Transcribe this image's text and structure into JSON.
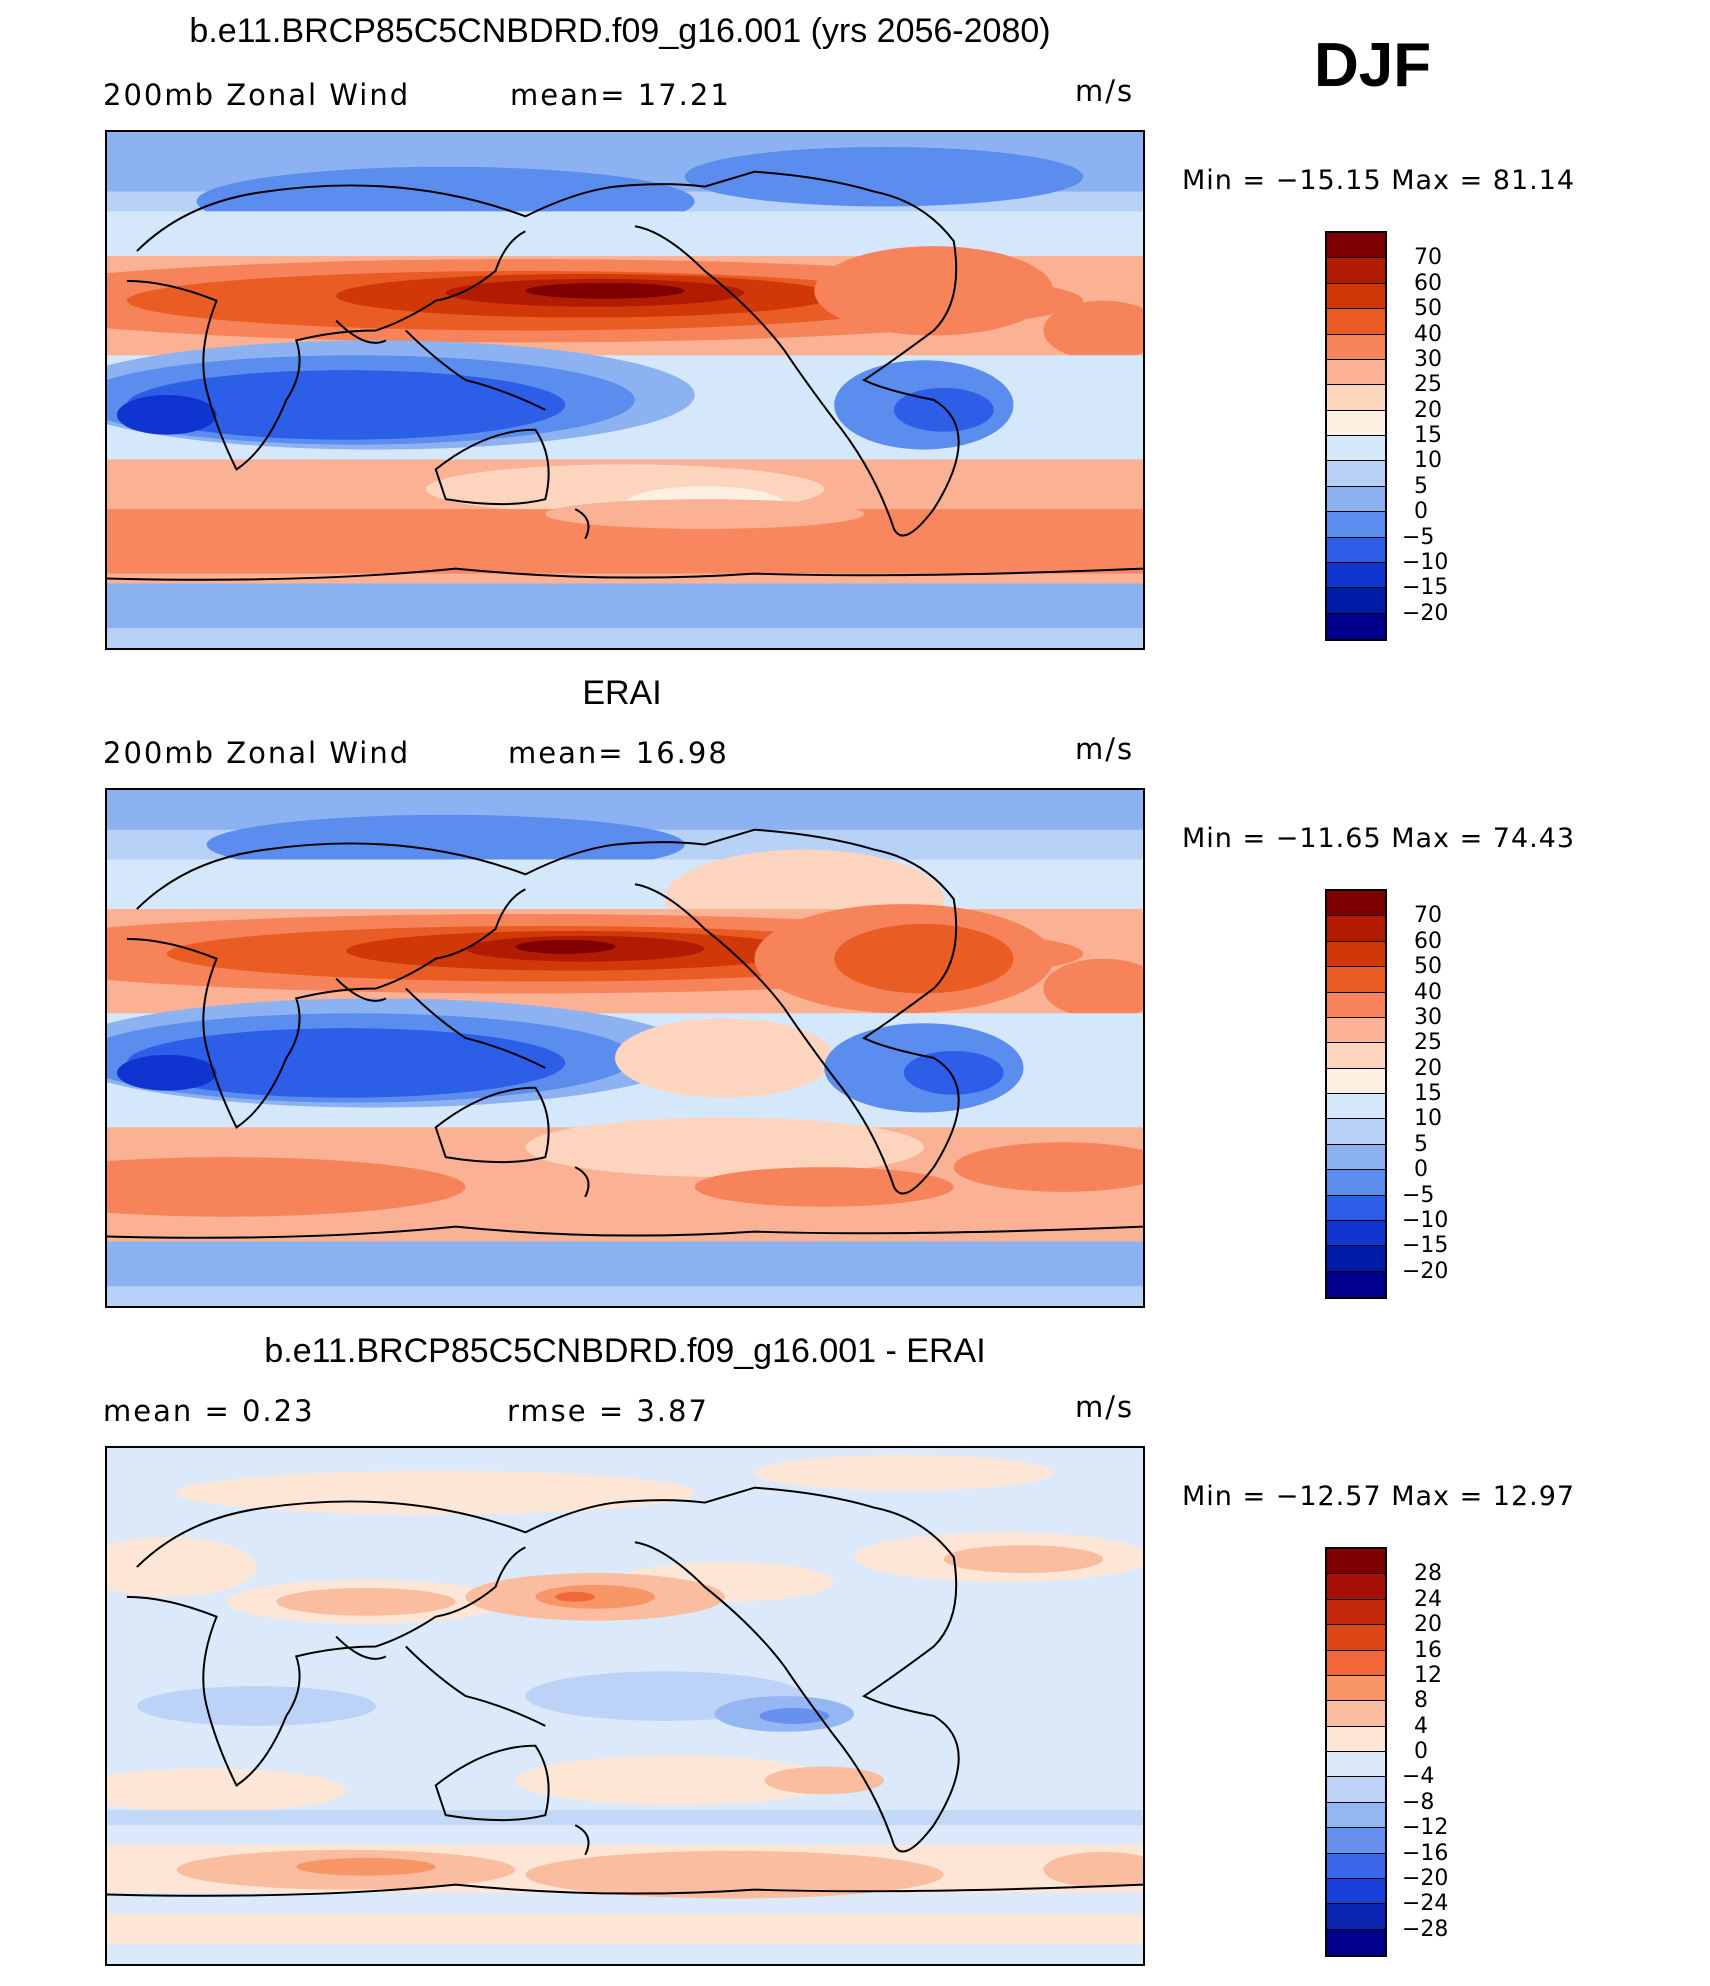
{
  "season": "DJF",
  "panels": [
    {
      "title": "b.e11.BRCP85C5CNBDRD.f09_g16.001 (yrs 2056-2080)",
      "left_label": "200mb Zonal Wind",
      "center_label": "mean=  17.21",
      "units": "m/s",
      "min_max": "Min = −15.15 Max =  81.14",
      "legend": [
        "70",
        "60",
        "50",
        "40",
        "30",
        "25",
        "20",
        "15",
        "10",
        "5",
        "0",
        "−5",
        "−10",
        "−15",
        "−20"
      ],
      "colors": [
        "#7f0000",
        "#b11b02",
        "#d13807",
        "#e95d25",
        "#f7835a",
        "#fab194",
        "#fdd5bf",
        "#fdf0e2",
        "#d5e7fa",
        "#b7d1f7",
        "#8cb2f2",
        "#5b8def",
        "#2c5ee8",
        "#0f34d0",
        "#001ba6",
        "#00008c"
      ]
    },
    {
      "title": "ERAI",
      "left_label": "200mb Zonal Wind",
      "center_label": "mean=  16.98",
      "units": "m/s",
      "min_max": "Min = −11.65 Max =  74.43",
      "legend": [
        "70",
        "60",
        "50",
        "40",
        "30",
        "25",
        "20",
        "15",
        "10",
        "5",
        "0",
        "−5",
        "−10",
        "−15",
        "−20"
      ],
      "colors": [
        "#7f0000",
        "#b11b02",
        "#d13807",
        "#e95d25",
        "#f7835a",
        "#fab194",
        "#fdd5bf",
        "#fdf0e2",
        "#d5e7fa",
        "#b7d1f7",
        "#8cb2f2",
        "#5b8def",
        "#2c5ee8",
        "#0f34d0",
        "#001ba6",
        "#00008c"
      ]
    },
    {
      "title": "b.e11.BRCP85C5CNBDRD.f09_g16.001 - ERAI",
      "left_label": "mean =    0.23",
      "center_label": "rmse =    3.87",
      "units": "m/s",
      "min_max": "Min = −12.57 Max =  12.97",
      "legend": [
        "28",
        "24",
        "20",
        "16",
        "12",
        "8",
        "4",
        "0",
        "−4",
        "−8",
        "−12",
        "−16",
        "−20",
        "−24",
        "−28"
      ],
      "colors": [
        "#7f0000",
        "#a50f04",
        "#c4290b",
        "#de4715",
        "#f2673a",
        "#f89667",
        "#fbbda0",
        "#fde6d6",
        "#dce9fa",
        "#bcd3f7",
        "#94b6f3",
        "#6891ef",
        "#3c67ea",
        "#1740d9",
        "#0a24b1",
        "#00008c"
      ]
    }
  ]
}
